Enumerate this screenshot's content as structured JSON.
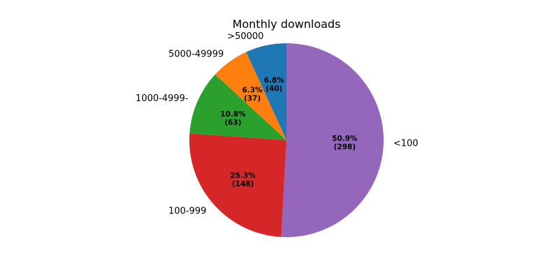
{
  "chart_data": {
    "type": "pie",
    "title": "Monthly downloads",
    "categories": [
      ">50000",
      "5000-49999",
      "1000-4999-",
      "100-999",
      "<100"
    ],
    "values": [
      40,
      37,
      63,
      148,
      298
    ],
    "percent_labels": [
      "6.8%",
      "6.3%",
      "10.8%",
      "25.3%",
      "50.9%"
    ],
    "count_labels": [
      "(40)",
      "(37)",
      "(63)",
      "(148)",
      "(298)"
    ],
    "colors": [
      "#1f77b4",
      "#ff7f0e",
      "#2ca02c",
      "#d62728",
      "#9467bd"
    ],
    "start_angle_deg": 90,
    "direction": "counterclockwise",
    "legend": "none"
  }
}
